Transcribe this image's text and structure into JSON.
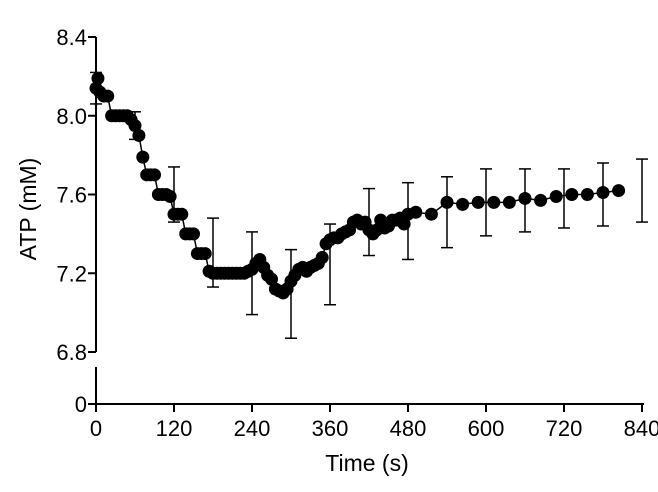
{
  "chart_data": {
    "type": "scatter",
    "xlabel": "Time (s)",
    "ylabel": "ATP (mM)",
    "xlim": [
      0,
      840
    ],
    "ylim_upper": [
      6.8,
      8.4
    ],
    "ylim_lower": [
      0,
      0
    ],
    "y_axis_break": true,
    "xticks": [
      0,
      120,
      240,
      360,
      480,
      600,
      720,
      840
    ],
    "xtick_labels": [
      "0",
      "120",
      "240",
      "360",
      "480",
      "600",
      "720",
      "840"
    ],
    "yticks": [
      6.8,
      7.2,
      7.6,
      8.0,
      8.4
    ],
    "ytick_labels": [
      "6.8",
      "7.2",
      "7.6",
      "8.0",
      "8.4"
    ],
    "ytick_lower_labels": [
      "0"
    ],
    "grid": false,
    "marker_color": "#000000",
    "series": [
      {
        "points": [
          [
            0,
            8.14
          ],
          [
            3,
            8.19
          ],
          [
            6,
            8.12
          ],
          [
            12,
            8.1
          ],
          [
            18,
            8.1
          ],
          [
            24,
            8.0
          ],
          [
            30,
            8.0
          ],
          [
            36,
            8.0
          ],
          [
            42,
            8.0
          ],
          [
            48,
            8.0
          ],
          [
            54,
            7.98
          ],
          [
            60,
            7.95
          ],
          [
            66,
            7.9
          ],
          [
            72,
            7.79
          ],
          [
            78,
            7.7
          ],
          [
            84,
            7.7
          ],
          [
            90,
            7.7
          ],
          [
            96,
            7.6
          ],
          [
            102,
            7.6
          ],
          [
            108,
            7.6
          ],
          [
            114,
            7.59
          ],
          [
            120,
            7.5
          ],
          [
            126,
            7.5
          ],
          [
            132,
            7.5
          ],
          [
            138,
            7.4
          ],
          [
            144,
            7.4
          ],
          [
            150,
            7.4
          ],
          [
            156,
            7.3
          ],
          [
            162,
            7.3
          ],
          [
            168,
            7.3
          ],
          [
            174,
            7.21
          ],
          [
            180,
            7.2
          ],
          [
            186,
            7.2
          ],
          [
            192,
            7.2
          ],
          [
            198,
            7.2
          ],
          [
            204,
            7.2
          ],
          [
            210,
            7.2
          ],
          [
            216,
            7.2
          ],
          [
            222,
            7.2
          ],
          [
            228,
            7.2
          ],
          [
            234,
            7.21
          ],
          [
            240,
            7.22
          ],
          [
            246,
            7.25
          ],
          [
            252,
            7.27
          ],
          [
            258,
            7.23
          ],
          [
            264,
            7.19
          ],
          [
            270,
            7.17
          ],
          [
            276,
            7.12
          ],
          [
            282,
            7.11
          ],
          [
            288,
            7.1
          ],
          [
            294,
            7.12
          ],
          [
            300,
            7.16
          ],
          [
            306,
            7.19
          ],
          [
            312,
            7.22
          ],
          [
            318,
            7.23
          ],
          [
            324,
            7.21
          ],
          [
            330,
            7.23
          ],
          [
            336,
            7.24
          ],
          [
            342,
            7.25
          ],
          [
            348,
            7.28
          ],
          [
            354,
            7.35
          ],
          [
            360,
            7.37
          ],
          [
            366,
            7.38
          ],
          [
            372,
            7.38
          ],
          [
            378,
            7.4
          ],
          [
            384,
            7.41
          ],
          [
            390,
            7.42
          ],
          [
            396,
            7.46
          ],
          [
            402,
            7.47
          ],
          [
            408,
            7.45
          ],
          [
            414,
            7.46
          ],
          [
            420,
            7.42
          ],
          [
            426,
            7.4
          ],
          [
            432,
            7.42
          ],
          [
            438,
            7.47
          ],
          [
            444,
            7.43
          ],
          [
            450,
            7.44
          ],
          [
            456,
            7.47
          ],
          [
            462,
            7.47
          ],
          [
            468,
            7.48
          ],
          [
            474,
            7.45
          ],
          [
            480,
            7.5
          ],
          [
            492,
            7.51
          ],
          [
            516,
            7.5
          ],
          [
            540,
            7.56
          ],
          [
            564,
            7.55
          ],
          [
            588,
            7.56
          ],
          [
            612,
            7.56
          ],
          [
            636,
            7.56
          ],
          [
            660,
            7.58
          ],
          [
            684,
            7.57
          ],
          [
            708,
            7.59
          ],
          [
            732,
            7.6
          ],
          [
            756,
            7.6
          ],
          [
            780,
            7.61
          ],
          [
            804,
            7.62
          ]
        ]
      }
    ],
    "error_bars": [
      {
        "x": 0,
        "y": 8.14,
        "lo": 8.06,
        "hi": 8.22
      },
      {
        "x": 60,
        "y": 7.95,
        "lo": 7.88,
        "hi": 8.02
      },
      {
        "x": 120,
        "y": 7.59,
        "lo": 7.46,
        "hi": 7.74
      },
      {
        "x": 180,
        "y": 7.2,
        "lo": 7.13,
        "hi": 7.48
      },
      {
        "x": 240,
        "y": 7.22,
        "lo": 6.99,
        "hi": 7.41
      },
      {
        "x": 300,
        "y": 7.1,
        "lo": 6.87,
        "hi": 7.32
      },
      {
        "x": 360,
        "y": 7.24,
        "lo": 7.04,
        "hi": 7.45
      },
      {
        "x": 420,
        "y": 7.46,
        "lo": 7.29,
        "hi": 7.63
      },
      {
        "x": 480,
        "y": 7.47,
        "lo": 7.27,
        "hi": 7.66
      },
      {
        "x": 540,
        "y": 7.5,
        "lo": 7.33,
        "hi": 7.69
      },
      {
        "x": 600,
        "y": 7.56,
        "lo": 7.39,
        "hi": 7.73
      },
      {
        "x": 660,
        "y": 7.56,
        "lo": 7.41,
        "hi": 7.73
      },
      {
        "x": 720,
        "y": 7.58,
        "lo": 7.43,
        "hi": 7.73
      },
      {
        "x": 780,
        "y": 7.6,
        "lo": 7.44,
        "hi": 7.76
      },
      {
        "x": 840,
        "y": 7.62,
        "lo": 7.46,
        "hi": 7.78
      }
    ]
  }
}
